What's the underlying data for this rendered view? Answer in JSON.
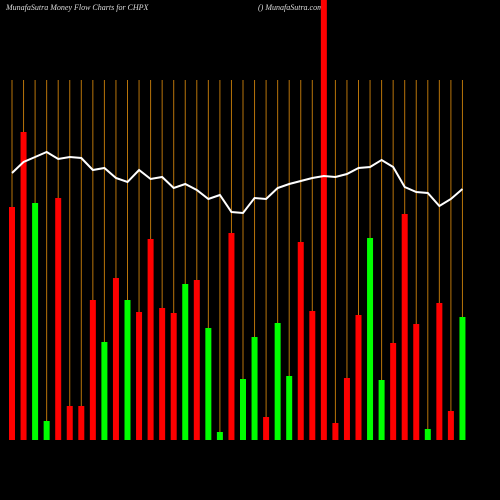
{
  "chart_data": {
    "type": "bar",
    "title": "MunafaSutra  Money Flow  Charts for CHPX",
    "subtitle": "() MunafaSutra.com",
    "categories": [
      null,
      null,
      null,
      null,
      null,
      null,
      null,
      null,
      null,
      null,
      null,
      null,
      null,
      null,
      null,
      null,
      null,
      null,
      null,
      null,
      null,
      null,
      null,
      null,
      null,
      null,
      null,
      null,
      null,
      null,
      null,
      null,
      null,
      null,
      null,
      null,
      null,
      null,
      null,
      null
    ],
    "values": [
      233,
      308,
      237,
      19,
      242,
      34,
      34,
      140,
      98,
      162,
      140,
      128,
      201,
      132,
      127,
      156,
      160,
      112,
      8,
      207,
      61,
      103,
      23,
      117,
      64,
      198,
      129,
      440,
      17,
      62,
      125,
      202,
      60,
      97,
      226,
      116,
      11,
      137,
      29,
      123
    ],
    "colors": [
      "#ff0000",
      "#ff0000",
      "#00ff00",
      "#00ff00",
      "#ff0000",
      "#ff0000",
      "#ff0000",
      "#ff0000",
      "#00ff00",
      "#ff0000",
      "#00ff00",
      "#ff0000",
      "#ff0000",
      "#ff0000",
      "#ff0000",
      "#00ff00",
      "#ff0000",
      "#00ff00",
      "#00ff00",
      "#ff0000",
      "#00ff00",
      "#00ff00",
      "#ff0000",
      "#00ff00",
      "#00ff00",
      "#ff0000",
      "#ff0000",
      "#ff0000",
      "#ff0000",
      "#ff0000",
      "#ff0000",
      "#00ff00",
      "#00ff00",
      "#ff0000",
      "#ff0000",
      "#ff0000",
      "#00ff00",
      "#ff0000",
      "#ff0000",
      "#00ff00"
    ],
    "ylim": [
      0,
      440
    ],
    "line": {
      "color": "#ffffff",
      "values": [
        267,
        278,
        283,
        288,
        281,
        283,
        282,
        270,
        272,
        262,
        258,
        270,
        261,
        263,
        252,
        256,
        250,
        241,
        245,
        228,
        227,
        242,
        241,
        252,
        256,
        259,
        262,
        264,
        263,
        266,
        272,
        273,
        280,
        273,
        253,
        248,
        247,
        234,
        241,
        251
      ]
    },
    "grid_color": "#b8740a"
  }
}
